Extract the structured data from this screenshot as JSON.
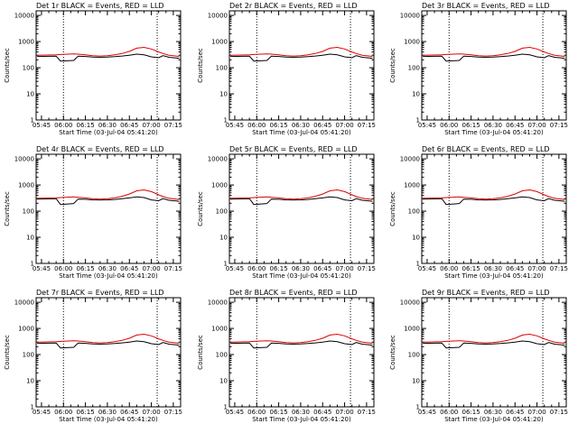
{
  "colors": {
    "events": "#000000",
    "lld": "#e00000",
    "background": "#ffffff",
    "frame": "#000000"
  },
  "common": {
    "ylabel": "Counts/sec",
    "xlabel": "Start Time (03-Jul-04 05:41:20)",
    "x_ticks": [
      "05:45",
      "06:00",
      "06:15",
      "06:30",
      "06:45",
      "07:00",
      "07:15"
    ],
    "x_tick_minutes": [
      345,
      360,
      375,
      390,
      405,
      420,
      435
    ],
    "y_ticks": [
      "1",
      "10",
      "100",
      "1000",
      "10000"
    ],
    "y_tick_values": [
      1,
      10,
      100,
      1000,
      10000
    ],
    "xlim_minutes": [
      341.33,
      440
    ],
    "ylim": [
      1,
      15000
    ],
    "y_scale": "log",
    "vlines_minutes": [
      360,
      424
    ],
    "x_sample_minutes": [
      342,
      355,
      358,
      367,
      370,
      375,
      380,
      385,
      390,
      395,
      400,
      405,
      410,
      415,
      420,
      425,
      428,
      432,
      437,
      439
    ]
  },
  "chart_data": [
    {
      "type": "line",
      "title": "Det 1r BLACK = Events, RED = LLD",
      "series": [
        {
          "name": "Events",
          "values": [
            270,
            275,
            180,
            190,
            275,
            270,
            255,
            250,
            255,
            265,
            280,
            300,
            330,
            310,
            260,
            240,
            290,
            250,
            235,
            225
          ]
        },
        {
          "name": "LLD",
          "values": [
            300,
            310,
            320,
            340,
            330,
            310,
            290,
            280,
            290,
            310,
            350,
            420,
            560,
            600,
            520,
            400,
            350,
            300,
            280,
            265
          ]
        }
      ]
    },
    {
      "type": "line",
      "title": "Det 2r BLACK = Events, RED = LLD",
      "series": [
        {
          "name": "Events",
          "values": [
            270,
            275,
            180,
            190,
            275,
            270,
            255,
            250,
            255,
            265,
            280,
            300,
            330,
            310,
            260,
            240,
            290,
            250,
            235,
            225
          ]
        },
        {
          "name": "LLD",
          "values": [
            300,
            310,
            320,
            340,
            330,
            310,
            290,
            280,
            290,
            310,
            350,
            420,
            560,
            600,
            520,
            400,
            350,
            300,
            280,
            265
          ]
        }
      ]
    },
    {
      "type": "line",
      "title": "Det 3r BLACK = Events, RED = LLD",
      "series": [
        {
          "name": "Events",
          "values": [
            270,
            275,
            180,
            190,
            275,
            270,
            255,
            250,
            255,
            265,
            280,
            300,
            330,
            310,
            260,
            240,
            290,
            250,
            235,
            225
          ]
        },
        {
          "name": "LLD",
          "values": [
            300,
            310,
            320,
            340,
            330,
            310,
            290,
            280,
            290,
            310,
            350,
            420,
            560,
            600,
            520,
            400,
            350,
            300,
            280,
            265
          ]
        }
      ]
    },
    {
      "type": "line",
      "title": "Det 4r BLACK = Events, RED = LLD",
      "series": [
        {
          "name": "Events",
          "values": [
            290,
            300,
            180,
            195,
            290,
            285,
            270,
            265,
            270,
            280,
            300,
            320,
            350,
            330,
            270,
            250,
            300,
            260,
            245,
            235
          ]
        },
        {
          "name": "LLD",
          "values": [
            310,
            320,
            330,
            350,
            340,
            320,
            300,
            290,
            300,
            320,
            370,
            450,
            600,
            650,
            560,
            420,
            360,
            310,
            290,
            275
          ]
        }
      ]
    },
    {
      "type": "line",
      "title": "Det 5r BLACK = Events, RED = LLD",
      "series": [
        {
          "name": "Events",
          "values": [
            290,
            300,
            180,
            195,
            290,
            285,
            270,
            265,
            270,
            280,
            300,
            320,
            350,
            330,
            270,
            250,
            300,
            260,
            245,
            235
          ]
        },
        {
          "name": "LLD",
          "values": [
            310,
            320,
            330,
            350,
            340,
            320,
            300,
            290,
            300,
            320,
            370,
            450,
            600,
            650,
            560,
            420,
            360,
            310,
            290,
            275
          ]
        }
      ]
    },
    {
      "type": "line",
      "title": "Det 6r BLACK = Events, RED = LLD",
      "series": [
        {
          "name": "Events",
          "values": [
            290,
            300,
            180,
            195,
            290,
            285,
            270,
            265,
            270,
            280,
            300,
            320,
            350,
            330,
            270,
            250,
            300,
            260,
            245,
            235
          ]
        },
        {
          "name": "LLD",
          "values": [
            310,
            320,
            330,
            350,
            340,
            320,
            300,
            290,
            300,
            320,
            370,
            450,
            600,
            650,
            560,
            420,
            360,
            310,
            290,
            275
          ]
        }
      ]
    },
    {
      "type": "line",
      "title": "Det 7r BLACK = Events, RED = LLD",
      "series": [
        {
          "name": "Events",
          "values": [
            270,
            275,
            180,
            190,
            275,
            270,
            255,
            250,
            255,
            265,
            280,
            300,
            330,
            310,
            260,
            240,
            290,
            250,
            235,
            225
          ]
        },
        {
          "name": "LLD",
          "values": [
            300,
            310,
            320,
            340,
            330,
            310,
            290,
            280,
            290,
            310,
            350,
            420,
            560,
            600,
            520,
            400,
            350,
            300,
            280,
            265
          ]
        }
      ]
    },
    {
      "type": "line",
      "title": "Det 8r BLACK = Events, RED = LLD",
      "series": [
        {
          "name": "Events",
          "values": [
            270,
            275,
            180,
            190,
            275,
            270,
            255,
            250,
            255,
            265,
            280,
            300,
            330,
            310,
            260,
            240,
            290,
            250,
            235,
            225
          ]
        },
        {
          "name": "LLD",
          "values": [
            300,
            310,
            320,
            340,
            330,
            310,
            290,
            280,
            290,
            310,
            350,
            420,
            560,
            600,
            520,
            400,
            350,
            300,
            280,
            265
          ]
        }
      ]
    },
    {
      "type": "line",
      "title": "Det 9r BLACK = Events, RED = LLD",
      "series": [
        {
          "name": "Events",
          "values": [
            270,
            275,
            180,
            190,
            275,
            270,
            255,
            250,
            255,
            265,
            280,
            300,
            330,
            310,
            260,
            240,
            290,
            250,
            235,
            225
          ]
        },
        {
          "name": "LLD",
          "values": [
            300,
            310,
            320,
            340,
            330,
            310,
            290,
            280,
            290,
            310,
            350,
            420,
            560,
            600,
            520,
            400,
            350,
            300,
            280,
            265
          ]
        }
      ]
    }
  ]
}
